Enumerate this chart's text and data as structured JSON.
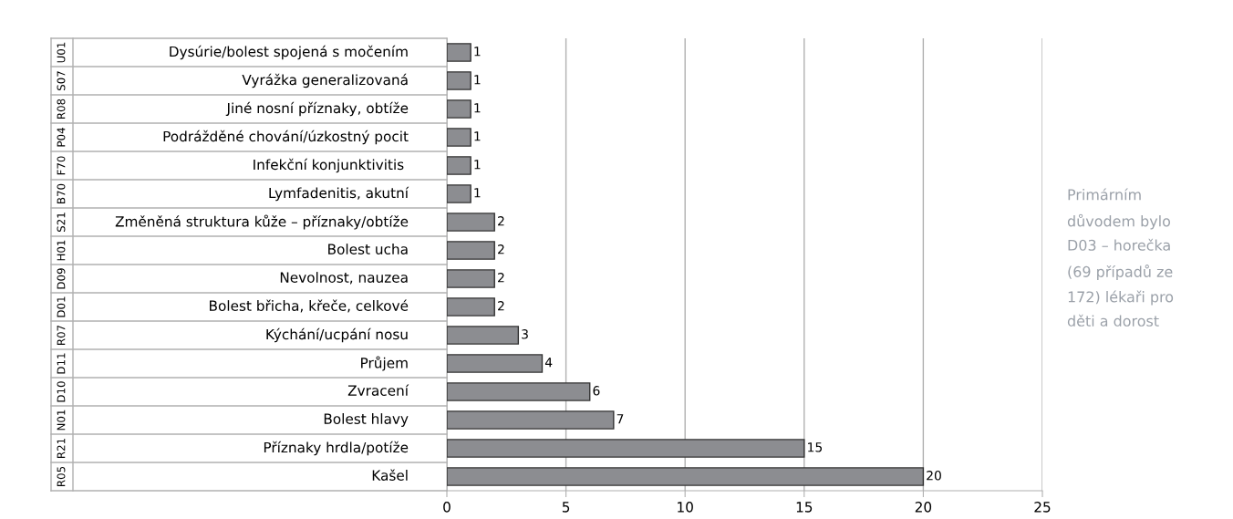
{
  "chart_data": {
    "type": "bar",
    "orientation": "horizontal",
    "categories": [
      "Dysúrie/bolest spojená s močením",
      "Vyrážka generalizovaná",
      "Jiné nosní příznaky, obtíže",
      "Podrážděné chování/úzkostný pocit",
      "Infekční konjunktivitis ",
      "Lymfadenitis, akutní",
      "Změněná struktura kůže – příznaky/obtíže",
      "Bolest ucha",
      "Nevolnost, nauzea",
      "Bolest břicha, křeče, celkové",
      "Kýchání/ucpání nosu",
      "Průjem",
      "Zvracení",
      "Bolest hlavy",
      "Příznaky hrdla/potíže",
      "Kašel"
    ],
    "y2_categories": [
      "U01",
      "S07",
      "R08",
      "P04",
      "F70",
      "B70",
      "S21",
      "H01",
      "D09",
      "D01",
      "R07",
      "D11",
      "D10",
      "N01",
      "R21",
      "R05"
    ],
    "values": [
      1,
      1,
      1,
      1,
      1,
      1,
      2,
      2,
      2,
      2,
      3,
      4,
      6,
      7,
      15,
      20
    ],
    "color": "#8c8d91",
    "xlim": [
      0,
      25
    ],
    "xticks": [
      0,
      5,
      10,
      15,
      20,
      25
    ],
    "grid": "x",
    "data_labels": true,
    "annotations": [
      "Primárním\ndůvodem bylo\nD03 – horečka\n(69 případů ze\n172) lékaři pro\nděti a dorost"
    ]
  }
}
